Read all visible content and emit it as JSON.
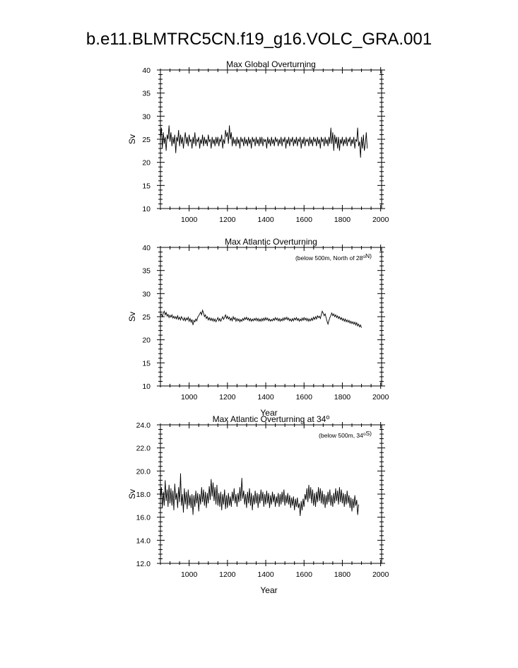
{
  "title": "b.e11.BLMTRC5CN.f19_g16.VOLC_GRA.001",
  "chart_data": [
    {
      "type": "line",
      "title": "Max Global Overturning",
      "subtitle": "",
      "xlabel": "",
      "ylabel": "Sv",
      "xlim": [
        850,
        2005
      ],
      "ylim": [
        10,
        40
      ],
      "xticks": [
        1000,
        1200,
        1400,
        1600,
        1800,
        2000
      ],
      "yticks": [
        10,
        15,
        20,
        25,
        30,
        35,
        40
      ],
      "ytick_labels": [
        "10",
        "15",
        "20",
        "25",
        "30",
        "35",
        "40"
      ],
      "grid": false,
      "series": [
        {
          "start_year": 850,
          "step_years": 5,
          "values": [
            25.0,
            27.5,
            23.0,
            26.5,
            24.0,
            25.5,
            22.5,
            26.0,
            25.0,
            28.0,
            24.5,
            26.5,
            23.5,
            25.5,
            24.0,
            26.0,
            22.0,
            25.5,
            24.5,
            27.0,
            23.5,
            26.0,
            24.0,
            25.5,
            23.0,
            25.0,
            26.5,
            24.0,
            25.5,
            23.5,
            26.0,
            24.5,
            25.0,
            23.0,
            25.5,
            24.0,
            26.5,
            23.5,
            25.0,
            24.5,
            25.5,
            23.0,
            25.0,
            24.0,
            26.0,
            23.5,
            25.5,
            24.0,
            25.0,
            23.5,
            26.0,
            24.5,
            25.0,
            23.0,
            25.5,
            24.0,
            25.0,
            23.5,
            25.5,
            24.0,
            25.5,
            23.5,
            25.0,
            24.5,
            26.0,
            23.0,
            25.0,
            24.0,
            27.0,
            25.5,
            26.5,
            24.0,
            28.0,
            25.0,
            26.5,
            23.5,
            25.5,
            24.0,
            25.0,
            23.5,
            25.5,
            24.0,
            25.0,
            23.0,
            25.5,
            24.5,
            25.0,
            23.5,
            25.5,
            24.0,
            25.0,
            23.5,
            25.5,
            24.0,
            25.0,
            23.0,
            25.5,
            24.5,
            25.0,
            23.5,
            25.5,
            24.0,
            25.0,
            23.5,
            25.5,
            24.0,
            25.5,
            23.5,
            25.0,
            24.5,
            25.0,
            23.0,
            25.5,
            24.0,
            25.0,
            23.5,
            25.5,
            24.0,
            25.0,
            23.5,
            25.5,
            24.5,
            25.0,
            23.5,
            25.0,
            24.0,
            25.5,
            23.5,
            25.0,
            24.5,
            25.5,
            23.0,
            25.0,
            24.0,
            25.5,
            23.5,
            25.0,
            24.5,
            25.5,
            23.5,
            25.0,
            24.0,
            25.5,
            23.5,
            25.0,
            24.5,
            25.5,
            23.0,
            25.0,
            24.0,
            25.5,
            23.5,
            25.0,
            24.5,
            25.0,
            23.5,
            25.5,
            24.0,
            25.0,
            23.5,
            25.5,
            24.5,
            25.0,
            23.5,
            25.5,
            24.0,
            25.0,
            23.0,
            25.5,
            24.5,
            25.0,
            23.5,
            25.5,
            24.0,
            25.0,
            23.5,
            25.5,
            24.0,
            27.5,
            24.0,
            26.5,
            22.5,
            26.0,
            24.0,
            25.5,
            23.0,
            25.5,
            22.5,
            25.0,
            24.0,
            25.5,
            23.5,
            25.0,
            24.0,
            25.5,
            23.5,
            25.0,
            24.5,
            25.5,
            23.5,
            25.0,
            24.0,
            25.5,
            23.0,
            25.0,
            24.5,
            27.5,
            23.5,
            24.5,
            21.0,
            25.5,
            23.0,
            26.0,
            22.5,
            24.0,
            26.5,
            23.0
          ]
        }
      ]
    },
    {
      "type": "line",
      "title": "Max Atlantic Overturning",
      "subtitle": "(below 500m, North of 28°N)",
      "xlabel": "Year",
      "ylabel": "Sv",
      "xlim": [
        850,
        2005
      ],
      "ylim": [
        10,
        40
      ],
      "xticks": [
        1000,
        1200,
        1400,
        1600,
        1800,
        2000
      ],
      "yticks": [
        10,
        15,
        20,
        25,
        30,
        35,
        40
      ],
      "ytick_labels": [
        "10",
        "15",
        "20",
        "25",
        "30",
        "35",
        "40"
      ],
      "grid": false,
      "series": [
        {
          "start_year": 850,
          "step_years": 5,
          "values": [
            25.2,
            25.6,
            25.0,
            25.8,
            26.2,
            25.4,
            25.9,
            25.1,
            25.5,
            24.8,
            25.3,
            24.9,
            25.4,
            24.7,
            25.1,
            24.6,
            25.0,
            24.5,
            25.2,
            24.4,
            24.9,
            24.3,
            25.0,
            24.6,
            24.2,
            24.8,
            24.1,
            24.7,
            24.3,
            24.9,
            24.0,
            24.6,
            23.8,
            24.4,
            23.2,
            24.2,
            23.9,
            24.5,
            24.1,
            24.9,
            25.2,
            25.6,
            26.0,
            25.4,
            26.4,
            25.8,
            25.0,
            25.4,
            24.6,
            25.0,
            24.3,
            24.8,
            24.2,
            24.7,
            24.1,
            24.6,
            24.0,
            24.5,
            23.9,
            24.3,
            24.8,
            24.1,
            24.6,
            24.0,
            24.5,
            25.0,
            24.4,
            24.9,
            25.4,
            24.6,
            25.1,
            24.5,
            24.9,
            24.2,
            24.7,
            24.1,
            25.0,
            24.4,
            24.8,
            24.0,
            24.6,
            24.1,
            24.5,
            23.9,
            24.4,
            24.0,
            24.6,
            24.2,
            24.8,
            24.4,
            24.9,
            24.3,
            24.7,
            24.1,
            24.6,
            24.0,
            24.5,
            24.1,
            24.6,
            24.2,
            24.7,
            24.1,
            24.6,
            24.0,
            24.5,
            24.0,
            24.6,
            24.1,
            24.7,
            24.2,
            24.8,
            24.3,
            24.7,
            24.1,
            24.5,
            24.0,
            24.4,
            24.1,
            24.6,
            24.2,
            24.8,
            24.3,
            24.7,
            24.1,
            24.6,
            24.0,
            24.5,
            24.1,
            24.7,
            24.2,
            24.8,
            24.4,
            24.9,
            24.3,
            24.7,
            24.1,
            24.5,
            24.0,
            24.6,
            24.1,
            24.7,
            24.3,
            24.8,
            24.2,
            24.6,
            24.0,
            24.5,
            24.1,
            24.7,
            24.2,
            24.8,
            24.3,
            24.7,
            24.1,
            24.6,
            24.0,
            24.5,
            24.1,
            24.7,
            24.2,
            24.9,
            24.4,
            25.0,
            24.5,
            25.2,
            24.8,
            25.1,
            24.6,
            25.4,
            26.2,
            25.8,
            25.2,
            25.6,
            24.8,
            24.0,
            23.4,
            24.2,
            24.8,
            25.3,
            25.8,
            25.2,
            25.6,
            25.0,
            25.4,
            24.8,
            25.2,
            24.6,
            25.0,
            24.4,
            24.8,
            24.2,
            24.6,
            24.0,
            24.5,
            23.9,
            24.3,
            23.8,
            24.2,
            23.6,
            24.0,
            23.5,
            23.9,
            23.4,
            23.8,
            23.2,
            23.7,
            23.0,
            23.4,
            22.8,
            23.2,
            22.6
          ]
        }
      ]
    },
    {
      "type": "line",
      "title": "Max Atlantic Overturning at 34°",
      "subtitle": "(below 500m, 34°S)",
      "xlabel": "Year",
      "ylabel": "Sv",
      "xlim": [
        850,
        2005
      ],
      "ylim": [
        12,
        24
      ],
      "xticks": [
        1000,
        1200,
        1400,
        1600,
        1800,
        2000
      ],
      "yticks": [
        12,
        14,
        16,
        18,
        20,
        22,
        24
      ],
      "ytick_labels": [
        "12.0",
        "14.0",
        "16.0",
        "18.0",
        "20.0",
        "22.0",
        "24.0"
      ],
      "grid": false,
      "series": [
        {
          "start_year": 850,
          "step_years": 5,
          "values": [
            17.5,
            18.6,
            16.8,
            18.2,
            17.0,
            19.2,
            17.4,
            18.4,
            16.9,
            18.8,
            17.2,
            18.5,
            17.0,
            18.3,
            16.6,
            18.9,
            17.5,
            18.1,
            16.8,
            18.6,
            17.3,
            19.8,
            17.0,
            18.0,
            16.4,
            18.5,
            17.1,
            18.2,
            16.7,
            18.4,
            17.0,
            17.9,
            16.8,
            18.0,
            16.2,
            17.9,
            16.9,
            18.3,
            17.2,
            18.1,
            16.5,
            18.0,
            17.1,
            18.6,
            17.3,
            18.4,
            17.0,
            18.2,
            16.8,
            18.1,
            17.2,
            18.7,
            17.5,
            19.3,
            17.8,
            19.0,
            17.4,
            18.6,
            17.1,
            18.8,
            17.0,
            18.1,
            16.9,
            18.2,
            16.6,
            18.0,
            17.1,
            18.4,
            16.7,
            17.9,
            16.8,
            18.1,
            17.0,
            17.8,
            16.9,
            18.2,
            17.4,
            18.5,
            17.2,
            18.0,
            16.9,
            18.1,
            17.3,
            18.6,
            17.4,
            19.4,
            17.6,
            18.3,
            17.1,
            18.0,
            16.8,
            18.2,
            17.2,
            18.5,
            17.0,
            18.1,
            16.6,
            17.9,
            17.1,
            18.3,
            17.2,
            18.1,
            16.8,
            18.0,
            17.2,
            18.4,
            17.4,
            18.2,
            16.9,
            18.0,
            17.1,
            18.3,
            17.2,
            18.1,
            16.8,
            17.9,
            17.1,
            18.2,
            17.3,
            18.0,
            16.9,
            17.8,
            17.2,
            18.1,
            16.9,
            18.0,
            17.1,
            18.2,
            17.3,
            18.4,
            17.0,
            17.9,
            17.2,
            18.1,
            17.1,
            17.9,
            16.8,
            17.7,
            17.0,
            17.8,
            16.6,
            17.6,
            16.9,
            17.7,
            16.8,
            17.2,
            16.1,
            17.4,
            16.6,
            17.6,
            16.9,
            18.0,
            17.5,
            18.5,
            17.3,
            18.8,
            17.6,
            18.6,
            17.2,
            18.4,
            17.0,
            18.1,
            16.9,
            18.2,
            17.3,
            18.6,
            17.4,
            18.5,
            17.2,
            18.3,
            17.1,
            18.0,
            16.8,
            17.9,
            17.1,
            18.2,
            17.3,
            18.4,
            17.0,
            17.9,
            16.9,
            18.1,
            17.2,
            18.5,
            17.4,
            18.3,
            17.1,
            18.6,
            17.3,
            18.4,
            17.2,
            18.1,
            16.9,
            18.0,
            17.1,
            18.3,
            17.2,
            17.9,
            16.8,
            17.7,
            16.5,
            17.6,
            16.8,
            17.9,
            17.0,
            17.5,
            16.2,
            17.1
          ]
        }
      ]
    }
  ]
}
